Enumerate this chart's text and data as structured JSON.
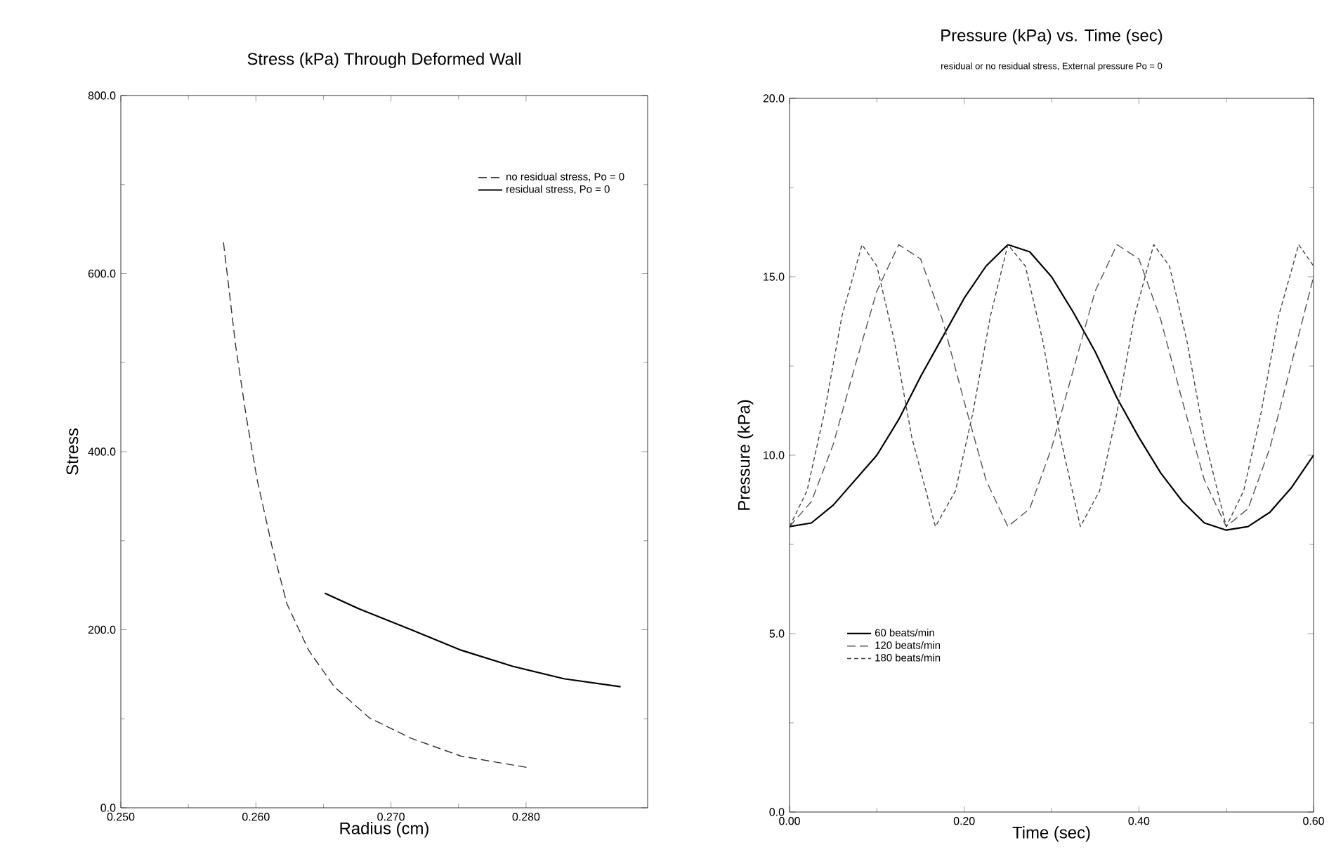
{
  "chart_data": [
    {
      "type": "line",
      "title": "Stress (kPa) Through Deformed Wall",
      "xlabel": "Radius (cm)",
      "ylabel": "Stress",
      "xlim": [
        0.25,
        0.289
      ],
      "ylim": [
        0,
        800
      ],
      "xticks": [
        {
          "value": 0.25,
          "label": "0.250"
        },
        {
          "value": 0.26,
          "label": "0.260"
        },
        {
          "value": 0.27,
          "label": "0.270"
        },
        {
          "value": 0.28,
          "label": "0.280"
        }
      ],
      "yticks": [
        {
          "value": 0,
          "label": "0.0"
        },
        {
          "value": 200,
          "label": "200.0"
        },
        {
          "value": 400,
          "label": "400.0"
        },
        {
          "value": 600,
          "label": "600.0"
        },
        {
          "value": 800,
          "label": "800.0"
        }
      ],
      "legend": "top right",
      "grid": false,
      "series": [
        {
          "name": "no residual stress, Po = 0",
          "color": "#333333",
          "line_style": "dashed",
          "x": [
            0.2576,
            0.2585,
            0.2593,
            0.2601,
            0.2612,
            0.2623,
            0.2639,
            0.2658,
            0.2684,
            0.2715,
            0.2752,
            0.2802
          ],
          "values": [
            635,
            519,
            438,
            368,
            293,
            229,
            177,
            136,
            101,
            78,
            58,
            45
          ]
        },
        {
          "name": "residual stress, Po = 0",
          "color": "#000000",
          "line_style": "solid",
          "x": [
            0.2651,
            0.2677,
            0.2715,
            0.2752,
            0.279,
            0.2828,
            0.287
          ],
          "values": [
            241,
            223,
            200,
            177,
            159,
            145,
            136
          ]
        }
      ]
    },
    {
      "type": "line",
      "title": "Pressure (kPa) vs. Time (sec)",
      "subtitle": "residual or no residual stress, External pressure Po = 0",
      "xlabel": "Time (sec)",
      "ylabel": "Pressure (kPa)",
      "xlim": [
        0,
        0.6
      ],
      "ylim": [
        0,
        20
      ],
      "xticks": [
        {
          "value": 0,
          "label": "0.00"
        },
        {
          "value": 0.2,
          "label": "0.20"
        },
        {
          "value": 0.4,
          "label": "0.40"
        },
        {
          "value": 0.6,
          "label": "0.60"
        }
      ],
      "yticks": [
        {
          "value": 0,
          "label": "0.0"
        },
        {
          "value": 5,
          "label": "5.0"
        },
        {
          "value": 10,
          "label": "10.0"
        },
        {
          "value": 15,
          "label": "15.0"
        },
        {
          "value": 20,
          "label": "20.0"
        }
      ],
      "legend": "bottom left",
      "grid": false,
      "series": [
        {
          "name": "60 beats/min",
          "color": "#000000",
          "line_style": "solid",
          "x": [
            0,
            0.025,
            0.05,
            0.075,
            0.1,
            0.125,
            0.15,
            0.175,
            0.2,
            0.225,
            0.25,
            0.275,
            0.3,
            0.325,
            0.35,
            0.375,
            0.4,
            0.425,
            0.45,
            0.475,
            0.5,
            0.525,
            0.55,
            0.575,
            0.6
          ],
          "values": [
            8.0,
            8.1,
            8.6,
            9.3,
            10.0,
            11.0,
            12.2,
            13.3,
            14.4,
            15.3,
            15.9,
            15.7,
            15.0,
            14.0,
            12.9,
            11.6,
            10.5,
            9.5,
            8.7,
            8.1,
            7.9,
            8.0,
            8.4,
            9.1,
            10.0
          ]
        },
        {
          "name": "120 beats/min",
          "color": "#555555",
          "line_style": "dashed",
          "x": [
            0,
            0.025,
            0.05,
            0.075,
            0.1,
            0.125,
            0.15,
            0.175,
            0.2,
            0.225,
            0.25,
            0.275,
            0.3,
            0.325,
            0.35,
            0.375,
            0.4,
            0.425,
            0.45,
            0.475,
            0.5,
            0.525,
            0.55,
            0.575,
            0.6
          ],
          "values": [
            8.0,
            8.7,
            10.3,
            12.5,
            14.6,
            15.9,
            15.5,
            13.8,
            11.5,
            9.3,
            8.0,
            8.5,
            10.2,
            12.4,
            14.6,
            15.9,
            15.5,
            13.8,
            11.5,
            9.3,
            8.0,
            8.5,
            10.2,
            12.6,
            15.0
          ]
        },
        {
          "name": "180 beats/min",
          "color": "#444444",
          "line_style": "dashed",
          "x": [
            0,
            0.02,
            0.04,
            0.06,
            0.083,
            0.1,
            0.12,
            0.14,
            0.167,
            0.19,
            0.21,
            0.23,
            0.25,
            0.27,
            0.29,
            0.31,
            0.333,
            0.355,
            0.375,
            0.395,
            0.417,
            0.435,
            0.455,
            0.475,
            0.5,
            0.52,
            0.54,
            0.56,
            0.583,
            0.6
          ],
          "values": [
            8.0,
            9.0,
            11.2,
            13.9,
            15.9,
            15.3,
            13.2,
            10.5,
            8.0,
            9.0,
            11.2,
            13.9,
            15.9,
            15.3,
            13.2,
            10.5,
            8.0,
            9.0,
            11.2,
            13.9,
            15.9,
            15.3,
            13.2,
            10.5,
            8.0,
            9.0,
            11.2,
            13.9,
            15.9,
            15.3
          ]
        }
      ]
    }
  ]
}
